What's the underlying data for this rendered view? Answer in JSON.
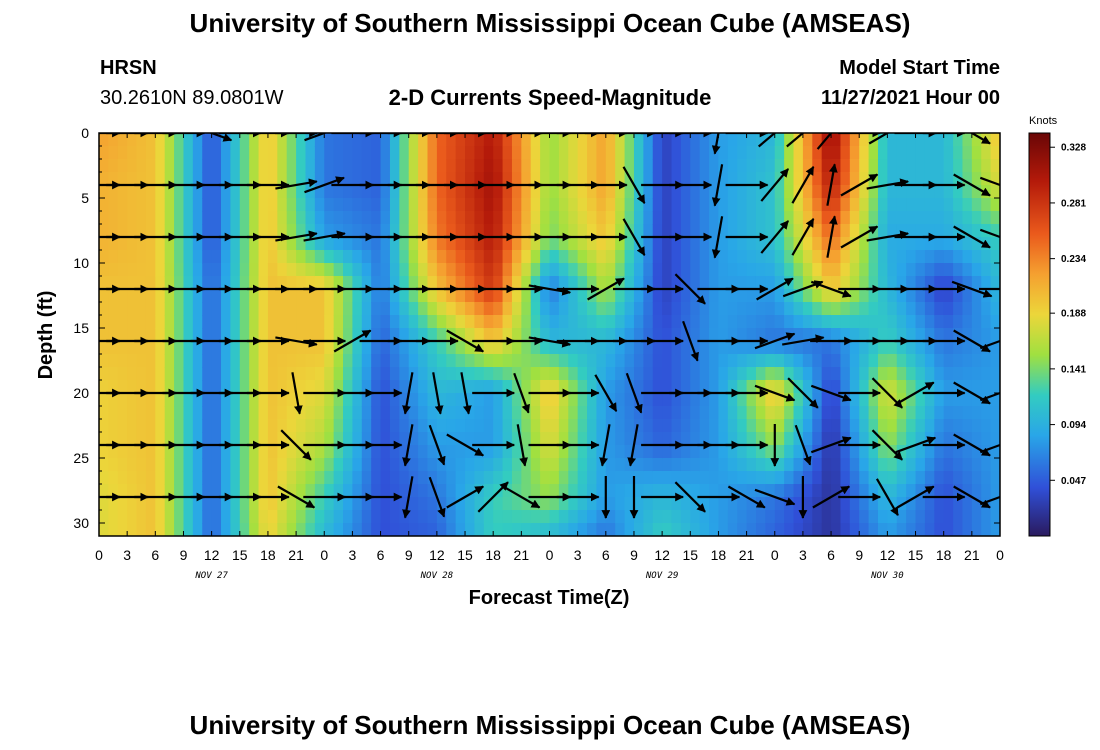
{
  "header": {
    "title": "University of Southern Mississippi Ocean Cube (AMSEAS)",
    "station": "HRSN",
    "coords": "30.2610N  89.0801W",
    "plot_title": "2-D Currents Speed-Magnitude",
    "model_label": "Model Start Time",
    "model_time": "11/27/2021 Hour 00"
  },
  "footer": {
    "title": "University of Southern Mississippi Ocean Cube (AMSEAS)"
  },
  "chart_data": {
    "type": "heatmap",
    "title": "2-D Currents Speed-Magnitude",
    "xlabel": "Forecast Time(Z)",
    "ylabel": "Depth (ft)",
    "x_range_hours": [
      0,
      96
    ],
    "ylim": [
      0,
      31
    ],
    "x_tick_labels": [
      "0",
      "3",
      "6",
      "9",
      "12",
      "15",
      "18",
      "21",
      "0",
      "3",
      "6",
      "9",
      "12",
      "15",
      "18",
      "21",
      "0",
      "3",
      "6",
      "9",
      "12",
      "15",
      "18",
      "21",
      "0",
      "3",
      "6",
      "9",
      "12",
      "15",
      "18",
      "21",
      "0"
    ],
    "y_ticks": [
      0,
      5,
      10,
      15,
      20,
      25,
      30
    ],
    "day_labels": [
      {
        "label": "NOV 27",
        "hour": 12
      },
      {
        "label": "NOV 28",
        "hour": 36
      },
      {
        "label": "NOV 29",
        "hour": 60
      },
      {
        "label": "NOV 30",
        "hour": 84
      }
    ],
    "colorbar": {
      "unit": "Knots",
      "min": 0.0,
      "max": 0.34,
      "ticks": [
        "0.328",
        "0.281",
        "0.234",
        "0.188",
        "0.141",
        "0.094",
        "0.047"
      ],
      "tick_values": [
        0.328,
        0.281,
        0.234,
        0.188,
        0.141,
        0.094,
        0.047
      ]
    },
    "speed_field_knots": {
      "hours": [
        0,
        6,
        12,
        18,
        24,
        30,
        36,
        42,
        48,
        54,
        60,
        66,
        72,
        78,
        84,
        90,
        96
      ],
      "depths_ft": [
        0,
        4,
        8,
        12,
        16,
        20,
        24,
        28,
        31
      ],
      "values": [
        [
          0.22,
          0.21,
          0.21,
          0.2,
          0.2,
          0.19,
          0.19,
          0.18,
          0.18
        ],
        [
          0.2,
          0.2,
          0.2,
          0.2,
          0.2,
          0.2,
          0.2,
          0.2,
          0.2
        ],
        [
          0.04,
          0.04,
          0.04,
          0.05,
          0.05,
          0.05,
          0.05,
          0.05,
          0.05
        ],
        [
          0.2,
          0.2,
          0.2,
          0.2,
          0.2,
          0.2,
          0.2,
          0.2,
          0.19
        ],
        [
          0.06,
          0.06,
          0.08,
          0.2,
          0.2,
          0.18,
          0.16,
          0.12,
          0.1
        ],
        [
          0.05,
          0.05,
          0.06,
          0.06,
          0.05,
          0.04,
          0.04,
          0.04,
          0.04
        ],
        [
          0.25,
          0.25,
          0.24,
          0.2,
          0.12,
          0.1,
          0.08,
          0.06,
          0.05
        ],
        [
          0.3,
          0.31,
          0.3,
          0.28,
          0.2,
          0.08,
          0.08,
          0.12,
          0.12
        ],
        [
          0.15,
          0.15,
          0.14,
          0.06,
          0.1,
          0.2,
          0.18,
          0.15,
          0.1
        ],
        [
          0.22,
          0.22,
          0.2,
          0.16,
          0.1,
          0.08,
          0.08,
          0.08,
          0.06
        ],
        [
          0.03,
          0.03,
          0.03,
          0.03,
          0.04,
          0.04,
          0.05,
          0.1,
          0.12
        ],
        [
          0.08,
          0.08,
          0.08,
          0.08,
          0.08,
          0.08,
          0.08,
          0.08,
          0.08
        ],
        [
          0.1,
          0.11,
          0.11,
          0.08,
          0.06,
          0.2,
          0.15,
          0.06,
          0.05
        ],
        [
          0.32,
          0.3,
          0.25,
          0.2,
          0.06,
          0.03,
          0.02,
          0.02,
          0.02
        ],
        [
          0.1,
          0.1,
          0.09,
          0.1,
          0.12,
          0.18,
          0.15,
          0.1,
          0.08
        ],
        [
          0.1,
          0.1,
          0.09,
          0.03,
          0.06,
          0.08,
          0.06,
          0.04,
          0.04
        ],
        [
          0.2,
          0.18,
          0.12,
          0.1,
          0.08,
          0.08,
          0.08,
          0.08,
          0.08
        ]
      ]
    },
    "vectors": {
      "hours": [
        0,
        3,
        6,
        9,
        12,
        15,
        18,
        21,
        24,
        27,
        30,
        33,
        36,
        39,
        42,
        45,
        48,
        51,
        54,
        57,
        60,
        63,
        66,
        69,
        72,
        75,
        78,
        81,
        84,
        87,
        90,
        93,
        96
      ],
      "depths_ft": [
        0,
        4,
        8,
        12,
        16,
        20,
        24,
        28
      ],
      "direction_deg": [
        [
          0,
          0,
          0,
          0,
          0,
          0,
          0,
          0
        ],
        [
          0,
          0,
          0,
          0,
          0,
          0,
          0,
          0
        ],
        [
          0,
          0,
          0,
          0,
          0,
          0,
          0,
          0
        ],
        [
          0,
          0,
          0,
          0,
          0,
          0,
          0,
          0
        ],
        [
          -20,
          0,
          0,
          0,
          0,
          0,
          0,
          0
        ],
        [
          0,
          0,
          0,
          0,
          0,
          0,
          0,
          0
        ],
        [
          0,
          0,
          0,
          0,
          0,
          0,
          0,
          0
        ],
        [
          0,
          10,
          10,
          0,
          -10,
          -80,
          -45,
          -30
        ],
        [
          20,
          20,
          10,
          0,
          0,
          0,
          0,
          0
        ],
        [
          0,
          0,
          0,
          0,
          30,
          0,
          0,
          0
        ],
        [
          0,
          0,
          0,
          0,
          0,
          0,
          0,
          0
        ],
        [
          0,
          0,
          0,
          0,
          0,
          -100,
          -100,
          -100
        ],
        [
          0,
          0,
          0,
          0,
          0,
          -80,
          -70,
          -70
        ],
        [
          0,
          0,
          0,
          0,
          -30,
          -80,
          -30,
          30
        ],
        [
          0,
          0,
          0,
          0,
          0,
          0,
          0,
          45
        ],
        [
          0,
          0,
          0,
          0,
          0,
          -70,
          -80,
          -30
        ],
        [
          0,
          0,
          0,
          -10,
          -10,
          0,
          0,
          0
        ],
        [
          0,
          0,
          0,
          0,
          0,
          0,
          0,
          0
        ],
        [
          0,
          0,
          0,
          30,
          0,
          -60,
          -100,
          -90
        ],
        [
          0,
          -60,
          -60,
          0,
          0,
          -70,
          -100,
          -90
        ],
        [
          0,
          0,
          0,
          0,
          0,
          0,
          0,
          0
        ],
        [
          0,
          0,
          0,
          -45,
          -70,
          0,
          0,
          -45
        ],
        [
          -100,
          -100,
          -100,
          0,
          0,
          0,
          0,
          0
        ],
        [
          0,
          0,
          0,
          0,
          0,
          0,
          0,
          -30
        ],
        [
          40,
          50,
          50,
          30,
          20,
          -20,
          -90,
          -20
        ],
        [
          40,
          60,
          60,
          20,
          10,
          -45,
          -70,
          -90
        ],
        [
          50,
          80,
          80,
          -20,
          0,
          -20,
          20,
          30
        ],
        [
          0,
          30,
          30,
          0,
          0,
          0,
          0,
          0
        ],
        [
          30,
          10,
          10,
          0,
          0,
          -45,
          -45,
          -60
        ],
        [
          0,
          0,
          0,
          0,
          0,
          30,
          20,
          30
        ],
        [
          0,
          0,
          0,
          0,
          0,
          0,
          0,
          0
        ],
        [
          -30,
          -30,
          -30,
          -20,
          -30,
          -30,
          -30,
          -30
        ],
        [
          -30,
          -20,
          -20,
          0,
          20,
          20,
          20,
          20
        ]
      ]
    }
  }
}
